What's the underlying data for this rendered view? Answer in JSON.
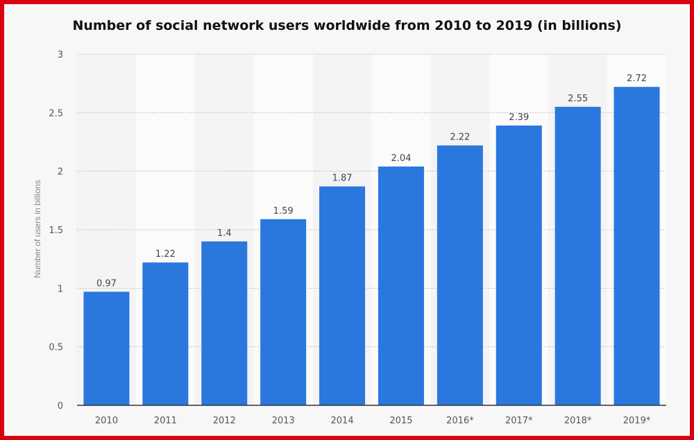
{
  "chart_data": {
    "type": "bar",
    "title": "Number of social network users worldwide from 2010 to 2019 (in billions)",
    "xlabel": "",
    "ylabel": "Number of users in billions",
    "categories": [
      "2010",
      "2011",
      "2012",
      "2013",
      "2014",
      "2015",
      "2016*",
      "2017*",
      "2018*",
      "2019*"
    ],
    "values": [
      0.97,
      1.22,
      1.4,
      1.59,
      1.87,
      2.04,
      2.22,
      2.39,
      2.55,
      2.72
    ],
    "value_labels": [
      "0.97",
      "1.22",
      "1.4",
      "1.59",
      "1.87",
      "2.04",
      "2.22",
      "2.39",
      "2.55",
      "2.72"
    ],
    "ylim": [
      0,
      3
    ],
    "yticks": [
      "0",
      "0.5",
      "1",
      "1.5",
      "2",
      "2.5",
      "3"
    ],
    "grid": true,
    "bar_color": "#2a77de",
    "frame_color": "#d8000c"
  }
}
